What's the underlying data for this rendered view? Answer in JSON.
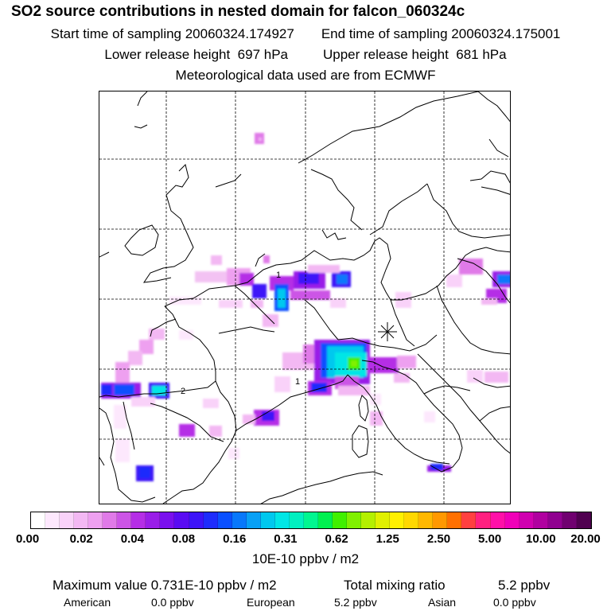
{
  "title": "SO2 source contributions in nested domain for falcon_060324c",
  "sampling": {
    "start": "Start time of sampling 20060324.174927",
    "end": "End time of sampling 20060324.175001"
  },
  "release": {
    "lower": "Lower release height  697 hPa",
    "upper": "Upper release height  681 hPa"
  },
  "meteo": "Meteorological data used are from ECMWF",
  "map": {
    "contour_labels": [
      "1",
      "1",
      "2"
    ],
    "release_marker": "star-icon"
  },
  "colorbar": {
    "colors": [
      "#ffffff",
      "#fde8fd",
      "#f9d2f9",
      "#f3b8f3",
      "#eea0f0",
      "#e07ae8",
      "#cc55e6",
      "#b52ee6",
      "#9a1ee8",
      "#7a10ee",
      "#5a0cf2",
      "#3d14f8",
      "#1e2cfc",
      "#0a50ff",
      "#0878fb",
      "#08a0f5",
      "#00c8ee",
      "#00e6e6",
      "#00f0c0",
      "#00f690",
      "#00f050",
      "#40f000",
      "#80f000",
      "#b4f000",
      "#e0f000",
      "#fff000",
      "#ffd800",
      "#ffb800",
      "#ff9800",
      "#ff7000",
      "#ff4040",
      "#ff2080",
      "#ff10a8",
      "#f000b8",
      "#d000b0",
      "#b000a0",
      "#900090",
      "#700070",
      "#500050"
    ],
    "ticks": [
      "0.00",
      "0.02",
      "0.04",
      "0.08",
      "0.16",
      "0.31",
      "0.62",
      "1.25",
      "2.50",
      "5.00",
      "10.00",
      "20.00"
    ],
    "units": "10E-10 ppbv / m2"
  },
  "summary": {
    "max_label": "Maximum value  0.731E-10 ppbv / m2",
    "total_label": "Total mixing ratio",
    "total_value": "5.2 ppbv"
  },
  "regions": [
    {
      "name": "American",
      "value": "0.0 ppbv"
    },
    {
      "name": "European",
      "value": "5.2 ppbv"
    },
    {
      "name": "Asian",
      "value": "0.0 ppbv"
    }
  ]
}
